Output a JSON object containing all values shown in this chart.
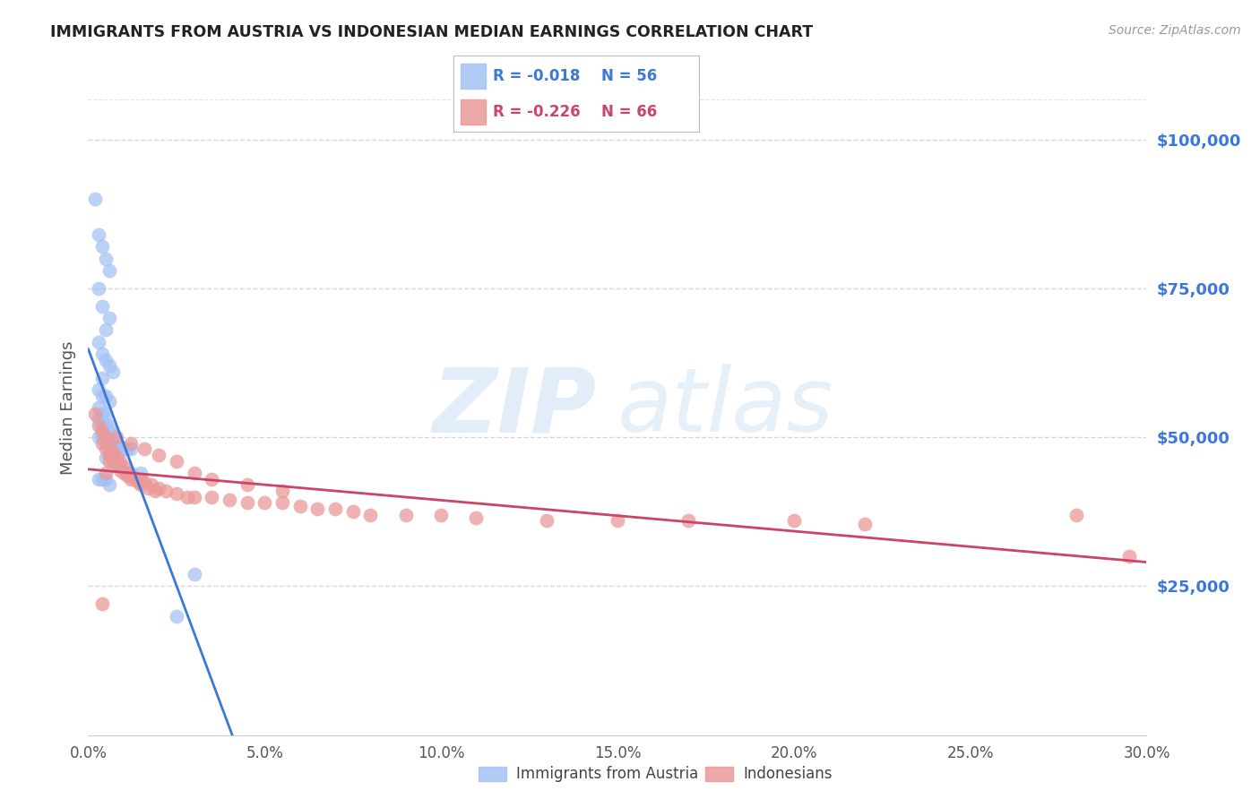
{
  "title": "IMMIGRANTS FROM AUSTRIA VS INDONESIAN MEDIAN EARNINGS CORRELATION CHART",
  "source": "Source: ZipAtlas.com",
  "ylabel": "Median Earnings",
  "legend_blue_r": "-0.018",
  "legend_blue_n": "56",
  "legend_pink_r": "-0.226",
  "legend_pink_n": "66",
  "watermark_zip": "ZIP",
  "watermark_atlas": "atlas",
  "legend_label_blue": "Immigrants from Austria",
  "legend_label_pink": "Indonesians",
  "ylim": [
    0,
    110000
  ],
  "xlim": [
    0.0,
    0.3
  ],
  "yticks": [
    25000,
    50000,
    75000,
    100000
  ],
  "ytick_labels": [
    "$25,000",
    "$50,000",
    "$75,000",
    "$100,000"
  ],
  "blue_dot_color": "#a4c2f4",
  "pink_dot_color": "#ea9999",
  "blue_line_color": "#3c78d8",
  "blue_line_color2": "#6d9eeb",
  "pink_line_color": "#cc4466",
  "grid_color": "#cccccc",
  "bg_color": "#ffffff",
  "axis_label_color": "#4a86c8",
  "blue_scatter_x": [
    0.002,
    0.003,
    0.004,
    0.005,
    0.006,
    0.003,
    0.004,
    0.006,
    0.005,
    0.003,
    0.004,
    0.005,
    0.006,
    0.007,
    0.004,
    0.003,
    0.005,
    0.004,
    0.006,
    0.003,
    0.004,
    0.005,
    0.003,
    0.004,
    0.005,
    0.006,
    0.004,
    0.005,
    0.006,
    0.007,
    0.005,
    0.004,
    0.003,
    0.006,
    0.007,
    0.005,
    0.006,
    0.008,
    0.009,
    0.01,
    0.011,
    0.012,
    0.007,
    0.008,
    0.006,
    0.005,
    0.007,
    0.009,
    0.012,
    0.015,
    0.003,
    0.004,
    0.005,
    0.006,
    0.03,
    0.025
  ],
  "blue_scatter_y": [
    90000,
    84000,
    82000,
    80000,
    78000,
    75000,
    72000,
    70000,
    68000,
    66000,
    64000,
    63000,
    62000,
    61000,
    60000,
    58000,
    57000,
    57000,
    56000,
    55000,
    54000,
    54000,
    53000,
    52000,
    52000,
    52000,
    51000,
    51000,
    51000,
    50500,
    50000,
    50000,
    50000,
    49500,
    49000,
    49000,
    49000,
    48500,
    48500,
    48000,
    48000,
    48000,
    47500,
    47000,
    47000,
    46500,
    46000,
    45000,
    44000,
    44000,
    43000,
    43000,
    43000,
    42000,
    27000,
    20000
  ],
  "pink_scatter_x": [
    0.002,
    0.003,
    0.004,
    0.005,
    0.004,
    0.006,
    0.005,
    0.007,
    0.006,
    0.008,
    0.007,
    0.009,
    0.008,
    0.01,
    0.009,
    0.011,
    0.01,
    0.012,
    0.011,
    0.013,
    0.012,
    0.015,
    0.014,
    0.016,
    0.015,
    0.018,
    0.017,
    0.02,
    0.019,
    0.022,
    0.025,
    0.028,
    0.03,
    0.035,
    0.04,
    0.045,
    0.05,
    0.055,
    0.06,
    0.065,
    0.07,
    0.075,
    0.08,
    0.09,
    0.1,
    0.11,
    0.13,
    0.15,
    0.17,
    0.2,
    0.22,
    0.008,
    0.012,
    0.016,
    0.02,
    0.025,
    0.03,
    0.035,
    0.045,
    0.055,
    0.004,
    0.005,
    0.006,
    0.007,
    0.28,
    0.295
  ],
  "pink_scatter_y": [
    54000,
    52000,
    51000,
    50000,
    49000,
    48500,
    48000,
    47500,
    47000,
    46500,
    46000,
    46000,
    45500,
    45000,
    44500,
    44000,
    44000,
    43500,
    43500,
    43000,
    43000,
    43000,
    42500,
    42500,
    42000,
    42000,
    41500,
    41500,
    41000,
    41000,
    40500,
    40000,
    40000,
    40000,
    39500,
    39000,
    39000,
    39000,
    38500,
    38000,
    38000,
    37500,
    37000,
    37000,
    37000,
    36500,
    36000,
    36000,
    36000,
    36000,
    35500,
    50000,
    49000,
    48000,
    47000,
    46000,
    44000,
    43000,
    42000,
    41000,
    22000,
    44000,
    46000,
    47000,
    37000,
    30000
  ]
}
